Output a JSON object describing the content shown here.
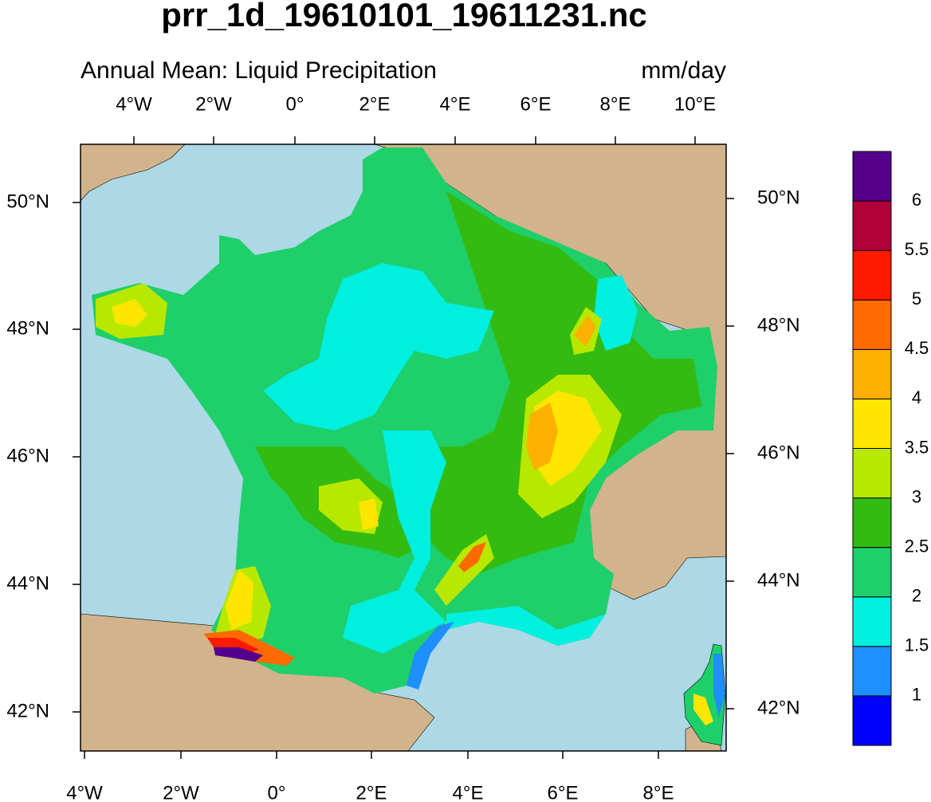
{
  "title": "prr_1d_19610101_19611231.nc",
  "subtitle": "Annual Mean: Liquid Precipitation",
  "units": "mm/day",
  "axes": {
    "top": [
      "4°W",
      "2°W",
      "0°",
      "2°E",
      "4°E",
      "6°E",
      "8°E",
      "10°E"
    ],
    "bottom": [
      "4°W",
      "2°W",
      "0°",
      "2°E",
      "4°E",
      "6°E",
      "8°E"
    ],
    "left": [
      "50°N",
      "48°N",
      "46°N",
      "44°N",
      "42°N"
    ],
    "right": [
      "50°N",
      "48°N",
      "46°N",
      "44°N",
      "42°N"
    ]
  },
  "colorbar": {
    "levels": [
      1,
      1.5,
      2,
      2.5,
      3,
      3.5,
      4,
      4.5,
      5,
      5.5,
      6
    ],
    "colors": [
      "#0000ff",
      "#1e8fff",
      "#00efdf",
      "#1ecf6a",
      "#33bb11",
      "#b8e800",
      "#ffe600",
      "#ffb000",
      "#ff6a00",
      "#ff1a00",
      "#b0003a",
      "#55008a"
    ]
  }
}
